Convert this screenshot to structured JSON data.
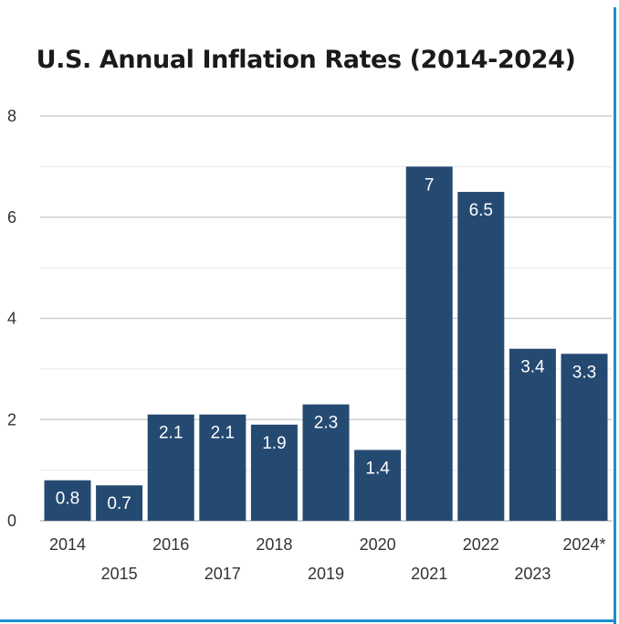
{
  "chart_data": {
    "type": "bar",
    "title": "U.S. Annual Inflation Rates (2014-2024)",
    "categories": [
      "2014",
      "2015",
      "2016",
      "2017",
      "2018",
      "2019",
      "2020",
      "2021",
      "2022",
      "2023",
      "2024*"
    ],
    "values": [
      0.8,
      0.7,
      2.1,
      2.1,
      1.9,
      2.3,
      1.4,
      7,
      6.5,
      3.4,
      3.3
    ],
    "data_labels": [
      "0.8",
      "0.7",
      "2.1",
      "2.1",
      "1.9",
      "2.3",
      "1.4",
      "7",
      "6.5",
      "3.4",
      "3.3"
    ],
    "ylim": [
      0,
      8
    ],
    "yticks": [
      0,
      2,
      4,
      6,
      8
    ],
    "grid": true,
    "legend": "none",
    "bar_color": "#254a72",
    "label_color": "#ffffff"
  },
  "colors": {
    "frame": "#1e8fd0",
    "gridline": "#d9d9d9"
  }
}
